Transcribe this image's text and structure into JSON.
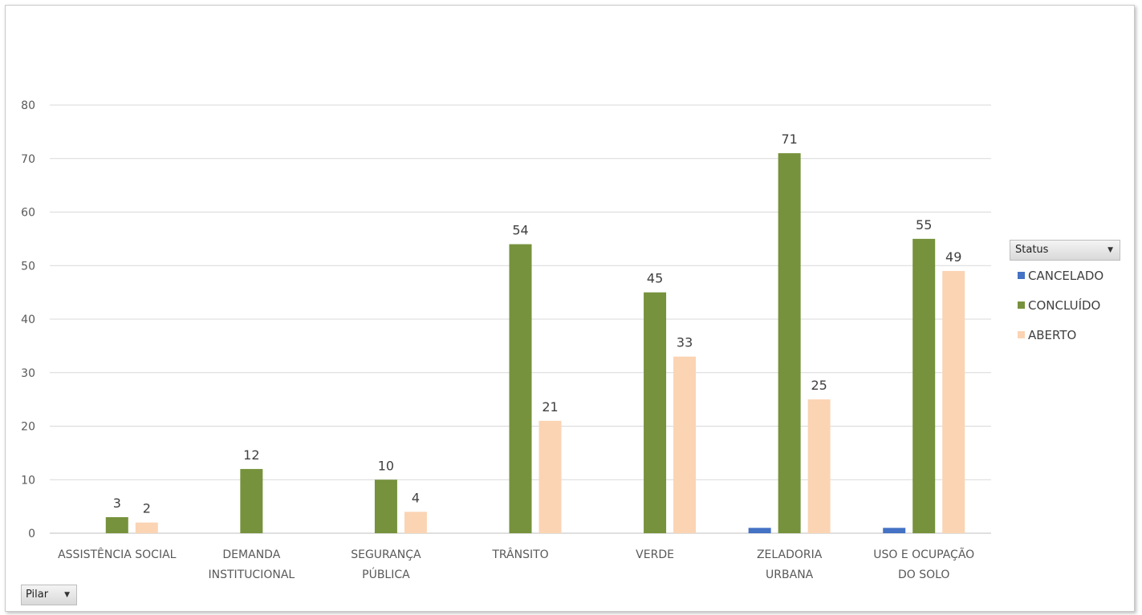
{
  "chart_data": {
    "type": "bar",
    "categories": [
      [
        "ASSISTÊNCIA SOCIAL"
      ],
      [
        "DEMANDA",
        "INSTITUCIONAL"
      ],
      [
        "SEGURANÇA",
        "PÚBLICA"
      ],
      [
        "TRÂNSITO"
      ],
      [
        "VERDE"
      ],
      [
        "ZELADORIA",
        "URBANA"
      ],
      [
        "USO E OCUPAÇÃO",
        "DO SOLO"
      ]
    ],
    "series": [
      {
        "name": "CANCELADO",
        "color": "#4472C4",
        "values": [
          0,
          0,
          0,
          0,
          0,
          1,
          1
        ],
        "labels": [
          "",
          "",
          "",
          "",
          "",
          "",
          ""
        ]
      },
      {
        "name": "CONCLUÍDO",
        "color": "#76923C",
        "values": [
          3,
          12,
          10,
          54,
          45,
          71,
          55
        ],
        "labels": [
          "3",
          "12",
          "10",
          "54",
          "45",
          "71",
          "55"
        ]
      },
      {
        "name": "ABERTO",
        "color": "#FBD4B4",
        "values": [
          2,
          0,
          4,
          21,
          33,
          25,
          49
        ],
        "labels": [
          "2",
          "",
          "4",
          "21",
          "33",
          "25",
          "49"
        ]
      }
    ],
    "ylim": [
      0,
      80
    ],
    "yticks": [
      "0",
      "10",
      "20",
      "30",
      "40",
      "50",
      "60",
      "70",
      "80"
    ],
    "grid": true,
    "legend_position": "right"
  },
  "legend": {
    "title": "Status",
    "dropdown_icon": "dropdown-arrow-icon"
  },
  "filter": {
    "label": "Pilar",
    "dropdown_icon": "dropdown-arrow-icon"
  }
}
